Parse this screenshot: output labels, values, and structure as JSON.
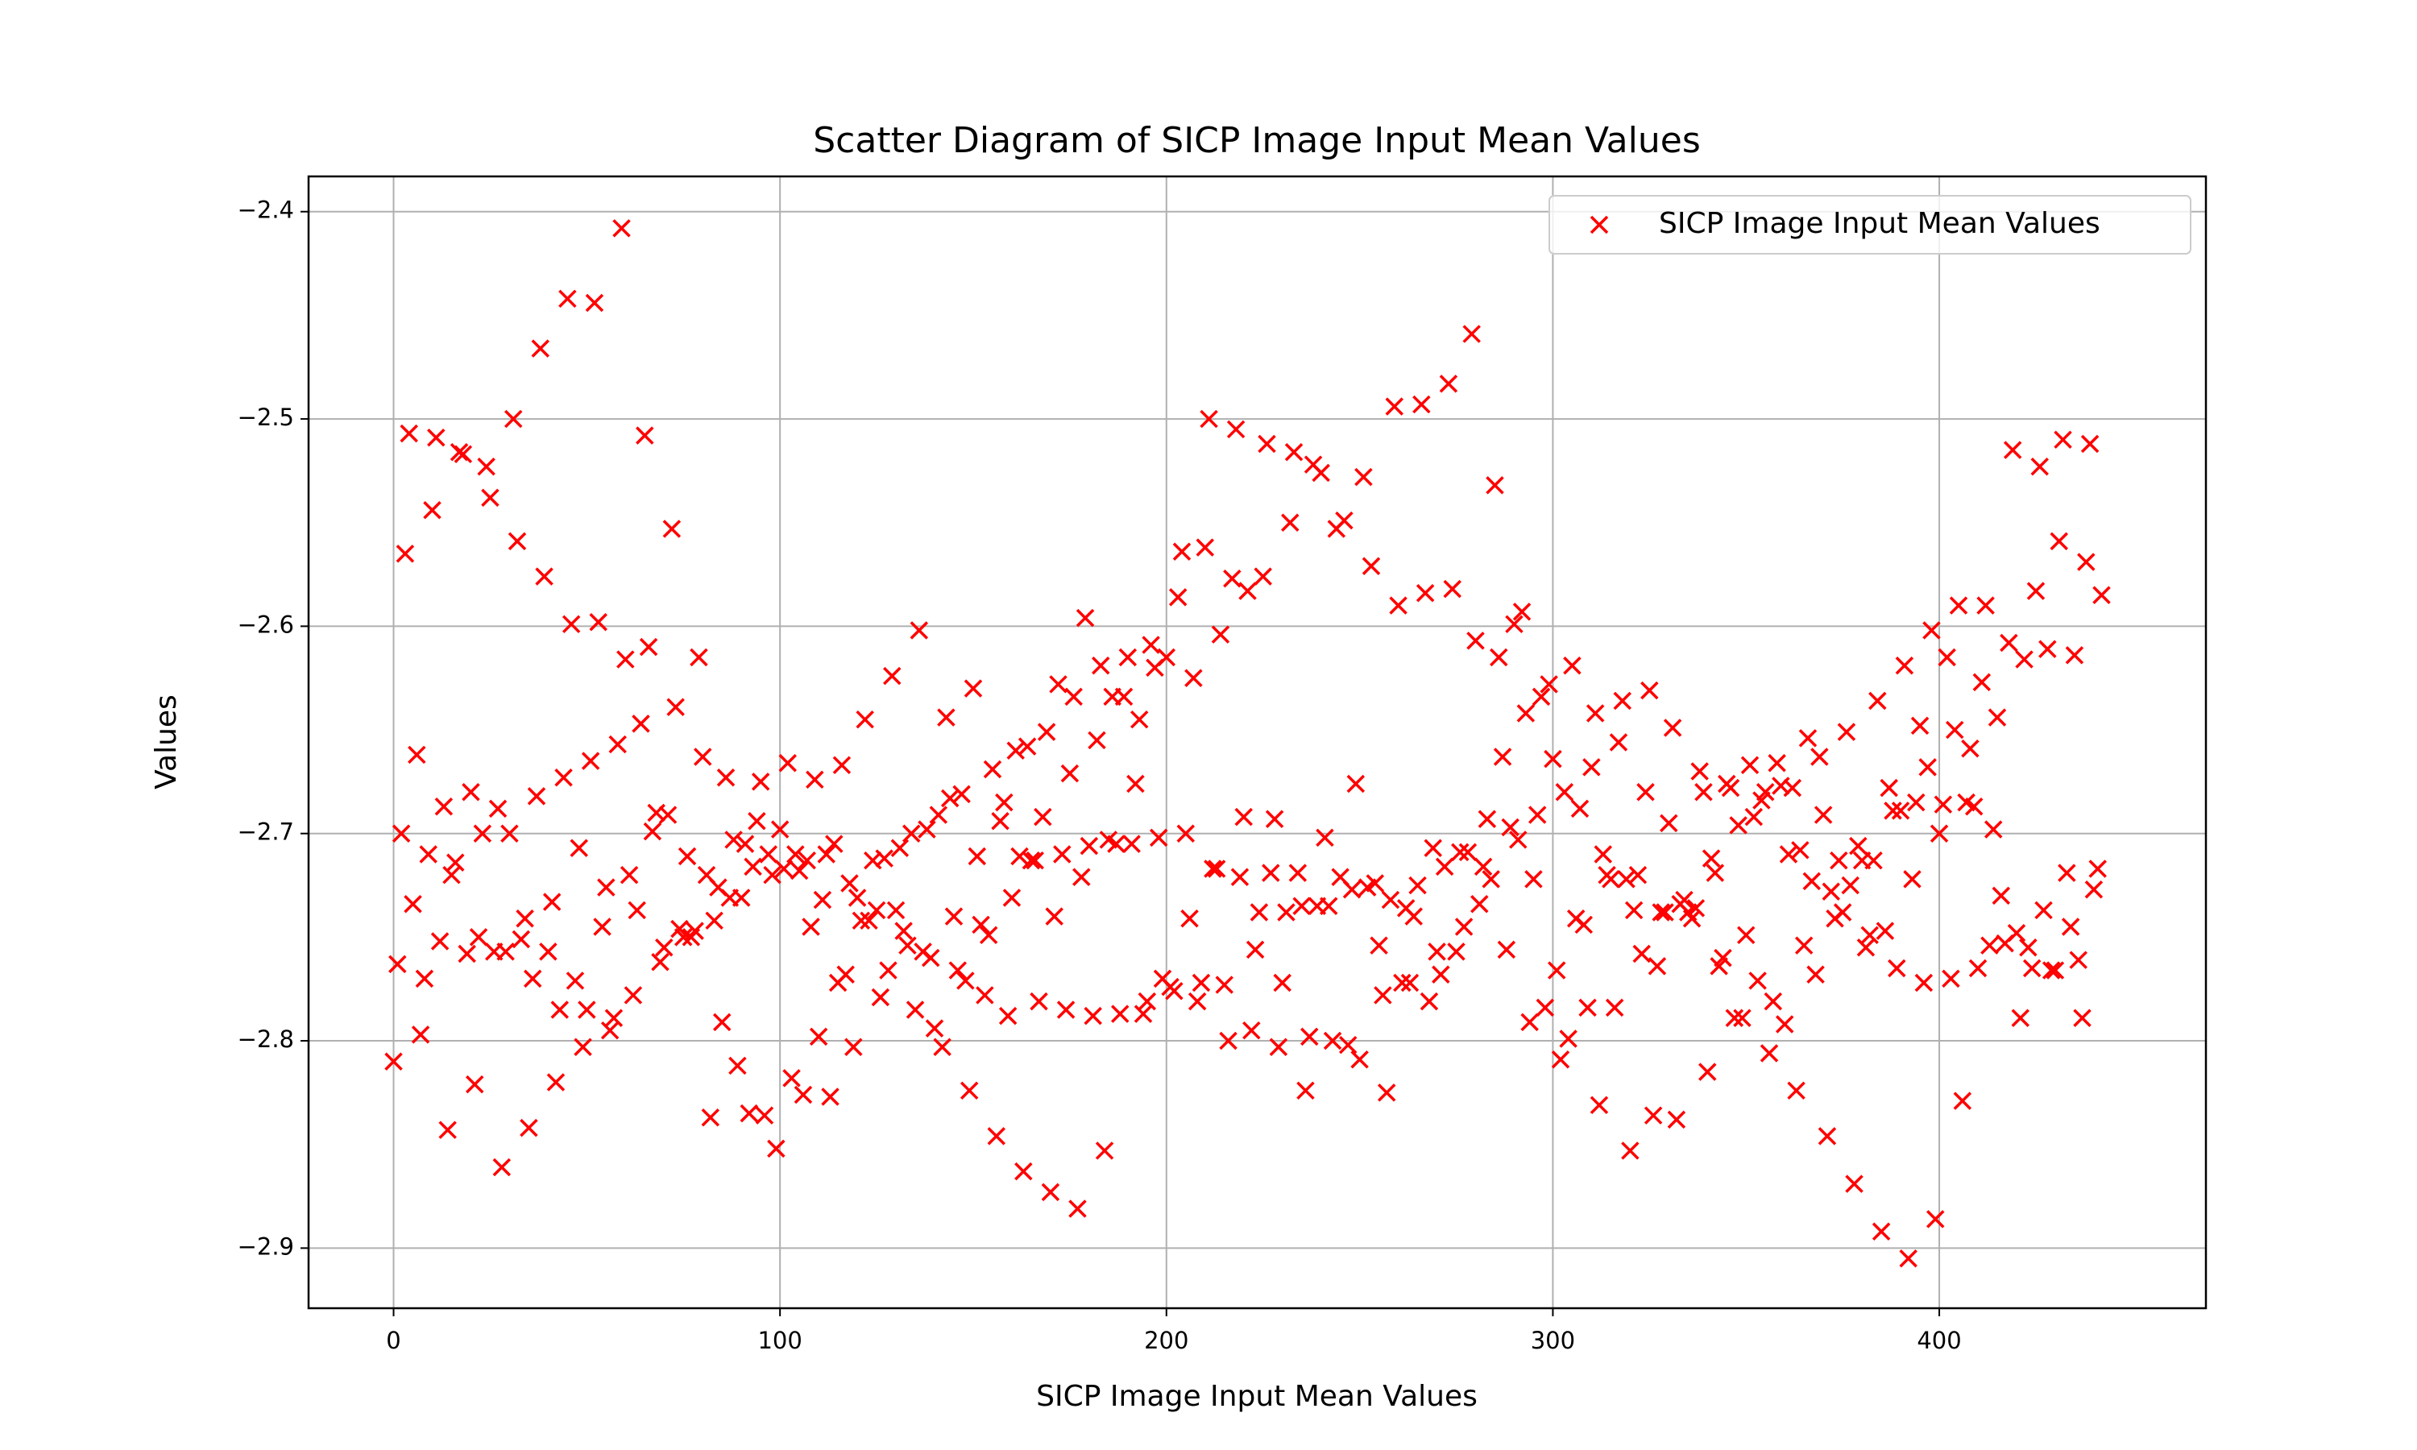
{
  "chart_data": {
    "type": "scatter",
    "title": "Scatter Diagram of SICP Image Input Mean Values",
    "xlabel": "SICP Image Input Mean Values",
    "ylabel": "Values",
    "xlim": [
      -22,
      469
    ],
    "ylim": [
      -2.383,
      -2.929
    ],
    "xticks": [
      0,
      100,
      200,
      300,
      400
    ],
    "yticks": [
      {
        "value": -2.4,
        "label": "−2.4"
      },
      {
        "value": -2.5,
        "label": "−2.5"
      },
      {
        "value": -2.6,
        "label": "−2.6"
      },
      {
        "value": -2.7,
        "label": "−2.7"
      },
      {
        "value": -2.8,
        "label": "−2.8"
      },
      {
        "value": -2.9,
        "label": "−2.9"
      }
    ],
    "grid": true,
    "legend": "upper right",
    "x": [
      0,
      1,
      2,
      3,
      4,
      5,
      6,
      7,
      8,
      9,
      10,
      11,
      12,
      13,
      14,
      15,
      16,
      17,
      18,
      19,
      20,
      21,
      22,
      23,
      24,
      25,
      26,
      27,
      28,
      29,
      30,
      31,
      32,
      33,
      34,
      35,
      36,
      37,
      38,
      39,
      40,
      41,
      42,
      43,
      44,
      45,
      46,
      47,
      48,
      49,
      50,
      51,
      52,
      53,
      54,
      55,
      56,
      57,
      58,
      59,
      60,
      61,
      62,
      63,
      64,
      65,
      66,
      67,
      68,
      69,
      70,
      71,
      72,
      73,
      74,
      75,
      76,
      77,
      78,
      79,
      80,
      81,
      82,
      83,
      84,
      85,
      86,
      87,
      88,
      89,
      90,
      91,
      92,
      93,
      94,
      95,
      96,
      97,
      98,
      99,
      100,
      101,
      102,
      103,
      104,
      105,
      106,
      107,
      108,
      109,
      110,
      111,
      112,
      113,
      114,
      115,
      116,
      117,
      118,
      119,
      120,
      121,
      122,
      123,
      124,
      125,
      126,
      127,
      128,
      129,
      130,
      131,
      132,
      133,
      134,
      135,
      136,
      137,
      138,
      139,
      140,
      141,
      142,
      143,
      144,
      145,
      146,
      147,
      148,
      149,
      150,
      151,
      152,
      153,
      154,
      155,
      156,
      157,
      158,
      159,
      160,
      161,
      162,
      163,
      164,
      165,
      166,
      167,
      168,
      169,
      170,
      171,
      172,
      173,
      174,
      175,
      176,
      177,
      178,
      179,
      180,
      181,
      182,
      183,
      184,
      185,
      186,
      187,
      188,
      189,
      190,
      191,
      192,
      193,
      194,
      195,
      196,
      197,
      198,
      199,
      200,
      201,
      202,
      203,
      204,
      205,
      206,
      207,
      208,
      209,
      210,
      211,
      212,
      213,
      214,
      215,
      216,
      217,
      218,
      219,
      220,
      221,
      222,
      223,
      224,
      225,
      226,
      227,
      228,
      229,
      230,
      231,
      232,
      233,
      234,
      235,
      236,
      237,
      238,
      239,
      240,
      241,
      242,
      243,
      244,
      245,
      246,
      247,
      248,
      249,
      250,
      251,
      252,
      253,
      254,
      255,
      256,
      257,
      258,
      259,
      260,
      261,
      262,
      263,
      264,
      265,
      266,
      267,
      268,
      269,
      270,
      271,
      272,
      273,
      274,
      275,
      276,
      277,
      278,
      279,
      280,
      281,
      282,
      283,
      284,
      285,
      286,
      287,
      288,
      289,
      290,
      291,
      292,
      293,
      294,
      295,
      296,
      297,
      298,
      299,
      300,
      301,
      302,
      303,
      304,
      305,
      306,
      307,
      308,
      309,
      310,
      311,
      312,
      313,
      314,
      315,
      316,
      317,
      318,
      319,
      320,
      321,
      322,
      323,
      324,
      325,
      326,
      327,
      328,
      329,
      330,
      331,
      332,
      333,
      334,
      335,
      336,
      337,
      338,
      339,
      340,
      341,
      342,
      343,
      344,
      345,
      346,
      347,
      348,
      349,
      350,
      351,
      352,
      353,
      354,
      355,
      356,
      357,
      358,
      359,
      360,
      361,
      362,
      363,
      364,
      365,
      366,
      367,
      368,
      369,
      370,
      371,
      372,
      373,
      374,
      375,
      376,
      377,
      378,
      379,
      380,
      381,
      382,
      383,
      384,
      385,
      386,
      387,
      388,
      389,
      390,
      391,
      392,
      393,
      394,
      395,
      396,
      397,
      398,
      399,
      400,
      401,
      402,
      403,
      404,
      405,
      406,
      407,
      408,
      409,
      410,
      411,
      412,
      413,
      414,
      415,
      416,
      417,
      418,
      419,
      420,
      421,
      422,
      423,
      424,
      425,
      426,
      427,
      428,
      429,
      430,
      431,
      432,
      433,
      434,
      435,
      436,
      437,
      438,
      439,
      440,
      441,
      442
    ],
    "series": [
      {
        "name": "SICP Image Input Mean Values",
        "color": "#ff0000",
        "values": [
          -2.81,
          -2.763,
          -2.7,
          -2.565,
          -2.507,
          -2.734,
          -2.662,
          -2.797,
          -2.77,
          -2.71,
          -2.544,
          -2.509,
          -2.752,
          -2.687,
          -2.843,
          -2.72,
          -2.714,
          -2.516,
          -2.517,
          -2.758,
          -2.68,
          -2.821,
          -2.75,
          -2.7,
          -2.523,
          -2.538,
          -2.757,
          -2.688,
          -2.861,
          -2.757,
          -2.7,
          -2.5,
          -2.559,
          -2.751,
          -2.741,
          -2.842,
          -2.77,
          -2.682,
          -2.466,
          -2.576,
          -2.757,
          -2.733,
          -2.82,
          -2.785,
          -2.673,
          -2.442,
          -2.599,
          -2.771,
          -2.707,
          -2.803,
          -2.785,
          -2.665,
          -2.444,
          -2.598,
          -2.745,
          -2.726,
          -2.795,
          -2.789,
          -2.657,
          -2.408,
          -2.616,
          -2.72,
          -2.778,
          -2.737,
          -2.647,
          -2.508,
          -2.61,
          -2.699,
          -2.69,
          -2.762,
          -2.755,
          -2.691,
          -2.553,
          -2.639,
          -2.746,
          -2.75,
          -2.711,
          -2.75,
          -2.747,
          -2.615,
          -2.663,
          -2.72,
          -2.837,
          -2.742,
          -2.726,
          -2.791,
          -2.673,
          -2.731,
          -2.703,
          -2.812,
          -2.731,
          -2.705,
          -2.835,
          -2.716,
          -2.694,
          -2.675,
          -2.836,
          -2.71,
          -2.72,
          -2.852,
          -2.698,
          -2.717,
          -2.666,
          -2.818,
          -2.71,
          -2.718,
          -2.826,
          -2.713,
          -2.745,
          -2.674,
          -2.798,
          -2.732,
          -2.71,
          -2.827,
          -2.705,
          -2.772,
          -2.667,
          -2.768,
          -2.724,
          -2.803,
          -2.731,
          -2.742,
          -2.645,
          -2.742,
          -2.713,
          -2.737,
          -2.779,
          -2.712,
          -2.766,
          -2.624,
          -2.737,
          -2.707,
          -2.747,
          -2.754,
          -2.7,
          -2.785,
          -2.602,
          -2.757,
          -2.698,
          -2.76,
          -2.794,
          -2.691,
          -2.803,
          -2.644,
          -2.683,
          -2.74,
          -2.766,
          -2.681,
          -2.771,
          -2.824,
          -2.63,
          -2.711,
          -2.744,
          -2.778,
          -2.749,
          -2.669,
          -2.846,
          -2.694,
          -2.685,
          -2.788,
          -2.731,
          -2.66,
          -2.711,
          -2.863,
          -2.658,
          -2.713,
          -2.713,
          -2.781,
          -2.692,
          -2.651,
          -2.873,
          -2.74,
          -2.628,
          -2.71,
          -2.785,
          -2.671,
          -2.634,
          -2.881,
          -2.721,
          -2.596,
          -2.706,
          -2.788,
          -2.655,
          -2.619,
          -2.853,
          -2.703,
          -2.634,
          -2.705,
          -2.787,
          -2.634,
          -2.615,
          -2.705,
          -2.676,
          -2.645,
          -2.787,
          -2.781,
          -2.609,
          -2.62,
          -2.702,
          -2.77,
          -2.615,
          -2.774,
          -2.776,
          -2.586,
          -2.564,
          -2.7,
          -2.741,
          -2.625,
          -2.781,
          -2.772,
          -2.562,
          -2.5,
          -2.717,
          -2.717,
          -2.604,
          -2.773,
          -2.8,
          -2.577,
          -2.505,
          -2.721,
          -2.692,
          -2.583,
          -2.795,
          -2.756,
          -2.738,
          -2.576,
          -2.512,
          -2.719,
          -2.693,
          -2.803,
          -2.772,
          -2.738,
          -2.55,
          -2.516,
          -2.719,
          -2.735,
          -2.824,
          -2.798,
          -2.522,
          -2.735,
          -2.526,
          -2.702,
          -2.735,
          -2.8,
          -2.553,
          -2.721,
          -2.549,
          -2.802,
          -2.727,
          -2.676,
          -2.809,
          -2.528,
          -2.726,
          -2.571,
          -2.724,
          -2.754,
          -2.778,
          -2.825,
          -2.732,
          -2.494,
          -2.59,
          -2.772,
          -2.736,
          -2.772,
          -2.74,
          -2.725,
          -2.493,
          -2.584,
          -2.781,
          -2.707,
          -2.757,
          -2.768,
          -2.716,
          -2.483,
          -2.582,
          -2.757,
          -2.709,
          -2.745,
          -2.709,
          -2.459,
          -2.607,
          -2.734,
          -2.716,
          -2.693,
          -2.722,
          -2.532,
          -2.615,
          -2.663,
          -2.756,
          -2.697,
          -2.599,
          -2.703,
          -2.593,
          -2.642,
          -2.791,
          -2.722,
          -2.691,
          -2.634,
          -2.784,
          -2.628,
          -2.664,
          -2.766,
          -2.809,
          -2.68,
          -2.799,
          -2.619,
          -2.741,
          -2.688,
          -2.744,
          -2.784,
          -2.668,
          -2.642,
          -2.831,
          -2.71,
          -2.72,
          -2.722,
          -2.784,
          -2.656,
          -2.636,
          -2.722,
          -2.853,
          -2.737,
          -2.72,
          -2.758,
          -2.68,
          -2.631,
          -2.836,
          -2.764,
          -2.738,
          -2.738,
          -2.695,
          -2.649,
          -2.838,
          -2.734,
          -2.732,
          -2.738,
          -2.741,
          -2.736,
          -2.67,
          -2.68,
          -2.815,
          -2.712,
          -2.719,
          -2.764,
          -2.76,
          -2.676,
          -2.678,
          -2.789,
          -2.696,
          -2.789,
          -2.749,
          -2.667,
          -2.692,
          -2.771,
          -2.684,
          -2.68,
          -2.806,
          -2.781,
          -2.666,
          -2.677,
          -2.792,
          -2.71,
          -2.678,
          -2.824,
          -2.708,
          -2.754,
          -2.654,
          -2.723,
          -2.768,
          -2.663,
          -2.691,
          -2.846,
          -2.728,
          -2.741,
          -2.713,
          -2.738,
          -2.651,
          -2.725,
          -2.869,
          -2.706,
          -2.713,
          -2.755,
          -2.749,
          -2.713,
          -2.636,
          -2.892,
          -2.747,
          -2.678,
          -2.689,
          -2.765,
          -2.689,
          -2.619,
          -2.905,
          -2.722,
          -2.685,
          -2.648,
          -2.772,
          -2.668,
          -2.602,
          -2.886,
          -2.7,
          -2.686,
          -2.615,
          -2.77,
          -2.65,
          -2.59,
          -2.829,
          -2.685,
          -2.659,
          -2.687,
          -2.765,
          -2.627,
          -2.59,
          -2.754,
          -2.698,
          -2.644,
          -2.73,
          -2.753,
          -2.608,
          -2.515,
          -2.748,
          -2.789,
          -2.616,
          -2.755,
          -2.765,
          -2.583,
          -2.523,
          -2.737,
          -2.611,
          -2.766,
          -2.766,
          -2.559,
          -2.51,
          -2.719,
          -2.745,
          -2.614,
          -2.761,
          -2.789,
          -2.569,
          -2.512,
          -2.727,
          -2.717,
          -2.585
        ]
      }
    ]
  }
}
